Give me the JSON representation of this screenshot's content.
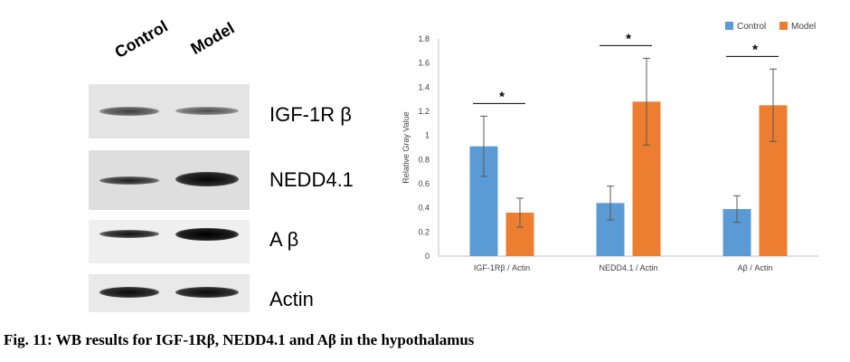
{
  "blot": {
    "lanes": [
      "Control",
      "Model"
    ],
    "proteins": [
      "IGF-1R β",
      "NEDD4.1",
      "A β",
      "Actin"
    ]
  },
  "chart_data": {
    "type": "bar",
    "categories": [
      "IGF-1Rβ / Actin",
      "NEDD4.1 / Actin",
      "Aβ / Actin"
    ],
    "series": [
      {
        "name": "Control",
        "color": "#5b9bd5",
        "values": [
          0.91,
          0.44,
          0.39
        ],
        "errors": [
          0.25,
          0.14,
          0.11
        ]
      },
      {
        "name": "Model",
        "color": "#ed7d31",
        "values": [
          0.36,
          1.28,
          1.25
        ],
        "errors": [
          0.12,
          0.36,
          0.3
        ]
      }
    ],
    "ylabel": "Relative Gray Value",
    "ylim": [
      0,
      1.8
    ],
    "yticks": [
      "0",
      "0.2",
      "0.4",
      "0.6",
      "0.8",
      "1",
      "1.2",
      "1.4",
      "1.6",
      "1.8"
    ],
    "significance": [
      "*",
      "*",
      "*"
    ],
    "legend_position": "top-right",
    "grid": false
  },
  "caption": "Fig. 11: WB results for IGF-1Rβ, NEDD4.1 and Aβ in the hypothalamus"
}
